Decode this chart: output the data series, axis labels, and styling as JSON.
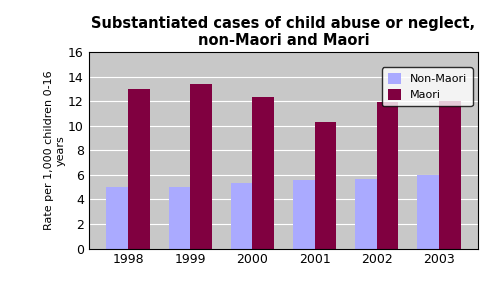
{
  "title": "Substantiated cases of child abuse or neglect,\nnon-Maori and Maori",
  "years": [
    "1998",
    "1999",
    "2000",
    "2001",
    "2002",
    "2003"
  ],
  "non_maori": [
    5.0,
    5.0,
    5.3,
    5.6,
    5.7,
    6.0
  ],
  "maori": [
    13.0,
    13.4,
    12.3,
    10.3,
    11.9,
    12.0
  ],
  "non_maori_color": "#aaaaff",
  "maori_color": "#800040",
  "ylabel": "Rate per 1,000 children 0-16\nyears",
  "ylim": [
    0,
    16
  ],
  "yticks": [
    0,
    2,
    4,
    6,
    8,
    10,
    12,
    14,
    16
  ],
  "legend_labels": [
    "Non-Maori",
    "Maori"
  ],
  "plot_bg_color": "#c8c8c8",
  "fig_bg_color": "#ffffff",
  "bar_width": 0.35,
  "title_fontsize": 10.5,
  "tick_fontsize": 9,
  "ylabel_fontsize": 8
}
